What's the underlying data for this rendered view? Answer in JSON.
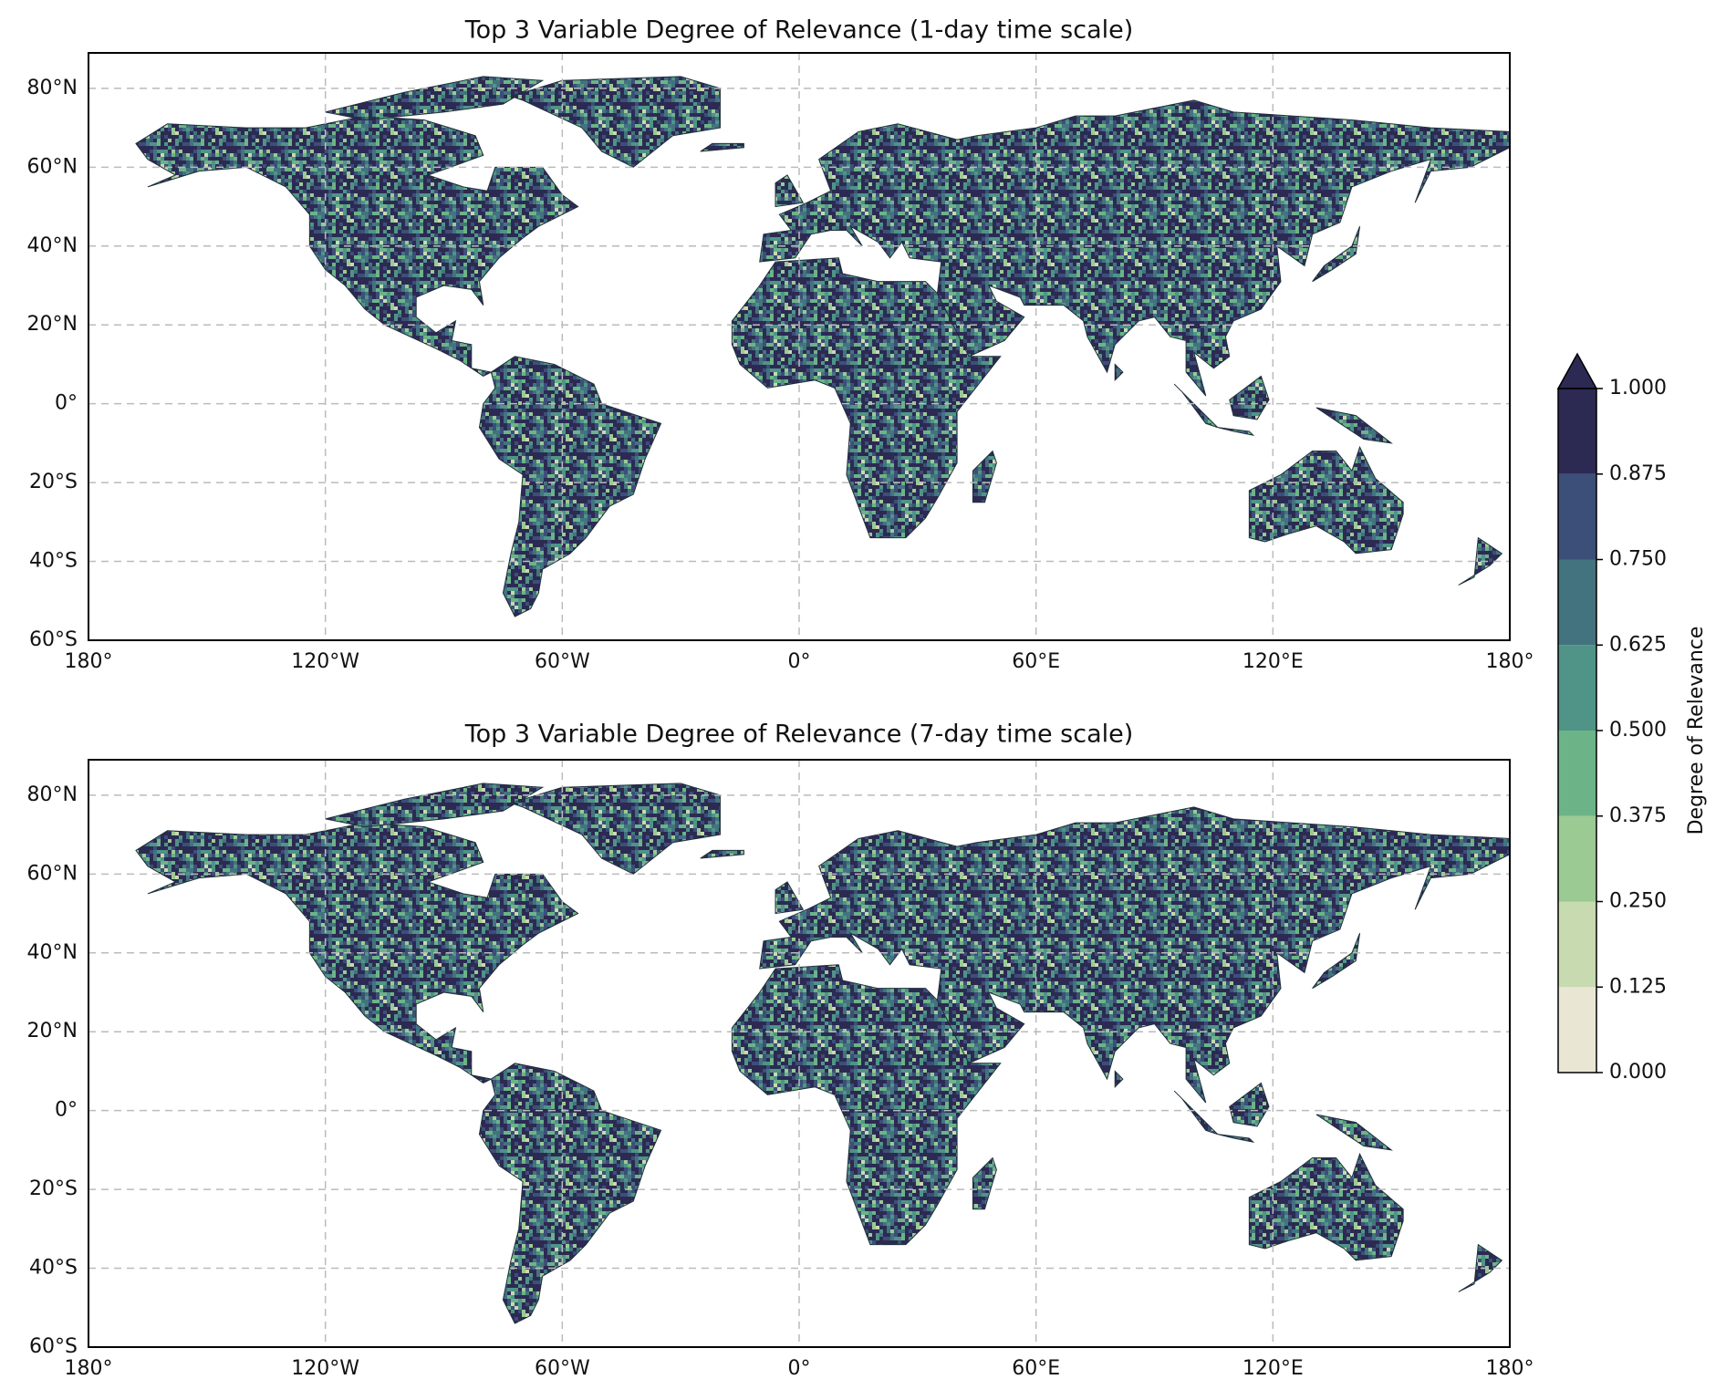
{
  "panels": [
    {
      "title": "Top 3 Variable Degree of Relevance (1-day time scale)",
      "xlim": [
        -180,
        180
      ],
      "ylim": [
        -60,
        89
      ],
      "xticks": [
        {
          "value": -180,
          "label": "180°"
        },
        {
          "value": -120,
          "label": "120°W"
        },
        {
          "value": -60,
          "label": "60°W"
        },
        {
          "value": 0,
          "label": "0°"
        },
        {
          "value": 60,
          "label": "60°E"
        },
        {
          "value": 120,
          "label": "120°E"
        },
        {
          "value": 180,
          "label": "180°"
        }
      ],
      "yticks": [
        {
          "value": -60,
          "label": "60°S"
        },
        {
          "value": -40,
          "label": "40°S"
        },
        {
          "value": -20,
          "label": "20°S"
        },
        {
          "value": 0,
          "label": "0°"
        },
        {
          "value": 20,
          "label": "20°N"
        },
        {
          "value": 40,
          "label": "40°N"
        },
        {
          "value": 60,
          "label": "60°N"
        },
        {
          "value": 80,
          "label": "80°N"
        }
      ],
      "grid": true
    },
    {
      "title": "Top 3 Variable Degree of Relevance (7-day time scale)",
      "xlim": [
        -180,
        180
      ],
      "ylim": [
        -60,
        89
      ],
      "xticks": [
        {
          "value": -180,
          "label": "180°"
        },
        {
          "value": -120,
          "label": "120°W"
        },
        {
          "value": -60,
          "label": "60°W"
        },
        {
          "value": 0,
          "label": "0°"
        },
        {
          "value": 60,
          "label": "60°E"
        },
        {
          "value": 120,
          "label": "120°E"
        },
        {
          "value": 180,
          "label": "180°"
        }
      ],
      "yticks": [
        {
          "value": -60,
          "label": "60°S"
        },
        {
          "value": -40,
          "label": "40°S"
        },
        {
          "value": -20,
          "label": "20°S"
        },
        {
          "value": 0,
          "label": "0°"
        },
        {
          "value": 20,
          "label": "20°N"
        },
        {
          "value": 40,
          "label": "40°N"
        },
        {
          "value": 60,
          "label": "60°N"
        },
        {
          "value": 80,
          "label": "80°N"
        }
      ],
      "grid": true
    }
  ],
  "colorbar": {
    "label": "Degree of Relevance",
    "extend": "max",
    "ticks": [
      {
        "value": 0,
        "label": "0.000"
      },
      {
        "value": 0.125,
        "label": "0.125"
      },
      {
        "value": 0.25,
        "label": "0.250"
      },
      {
        "value": 0.375,
        "label": "0.375"
      },
      {
        "value": 0.5,
        "label": "0.500"
      },
      {
        "value": 0.625,
        "label": "0.625"
      },
      {
        "value": 0.75,
        "label": "0.750"
      },
      {
        "value": 0.875,
        "label": "0.875"
      },
      {
        "value": 1,
        "label": "1.000"
      }
    ],
    "colors": [
      "#e9e6d4",
      "#c7dab0",
      "#9bca93",
      "#6cb487",
      "#4f9487",
      "#43737f",
      "#3c4f79",
      "#2c2a53"
    ]
  }
}
